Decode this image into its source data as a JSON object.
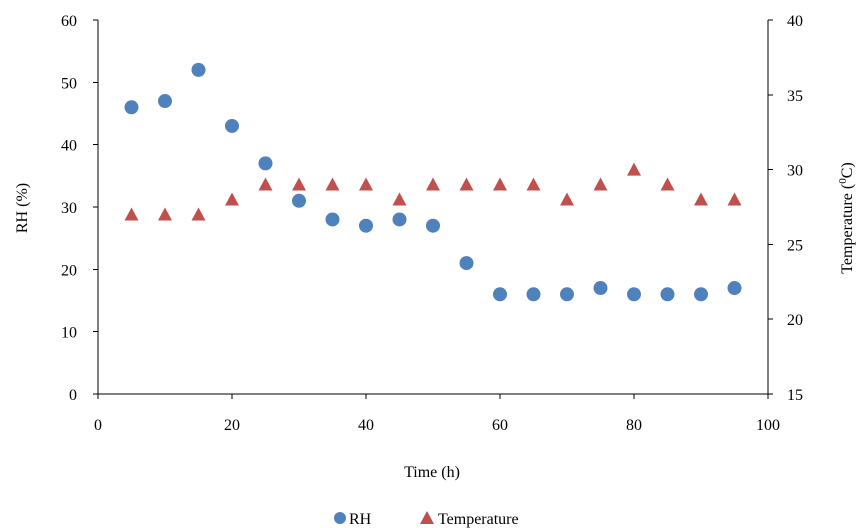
{
  "chart_data": {
    "type": "scatter",
    "title": "",
    "xlabel": "Time (h)",
    "ylabel": "RH (%)",
    "y2label": {
      "main": "Temperature (",
      "sup": "0",
      "tail": "C)"
    },
    "xlim": [
      0,
      100
    ],
    "ylim": [
      0,
      60
    ],
    "y2lim": [
      15,
      40
    ],
    "xticks": [
      0,
      20,
      40,
      60,
      80,
      100
    ],
    "yticks": [
      0,
      10,
      20,
      30,
      40,
      50,
      60
    ],
    "y2ticks": [
      15,
      20,
      25,
      30,
      35,
      40
    ],
    "grid": false,
    "legend_position": "bottom",
    "series": [
      {
        "name": "RH",
        "axis": "left",
        "marker": "circle",
        "color": "#4f81bd",
        "x": [
          5,
          10,
          15,
          20,
          25,
          30,
          35,
          40,
          45,
          50,
          55,
          60,
          65,
          70,
          75,
          80,
          85,
          90,
          95
        ],
        "y": [
          46,
          47,
          52,
          43,
          37,
          31,
          28,
          27,
          28,
          27,
          21,
          16,
          16,
          16,
          17,
          16,
          16,
          16,
          17
        ]
      },
      {
        "name": "Temperature",
        "axis": "right",
        "marker": "triangle",
        "color": "#c0504d",
        "x": [
          5,
          10,
          15,
          20,
          25,
          30,
          35,
          40,
          45,
          50,
          55,
          60,
          65,
          70,
          75,
          80,
          85,
          90,
          95
        ],
        "y": [
          27,
          27,
          27,
          28,
          29,
          29,
          29,
          29,
          28,
          29,
          29,
          29,
          29,
          28,
          29,
          30,
          29,
          28,
          28
        ]
      }
    ]
  }
}
